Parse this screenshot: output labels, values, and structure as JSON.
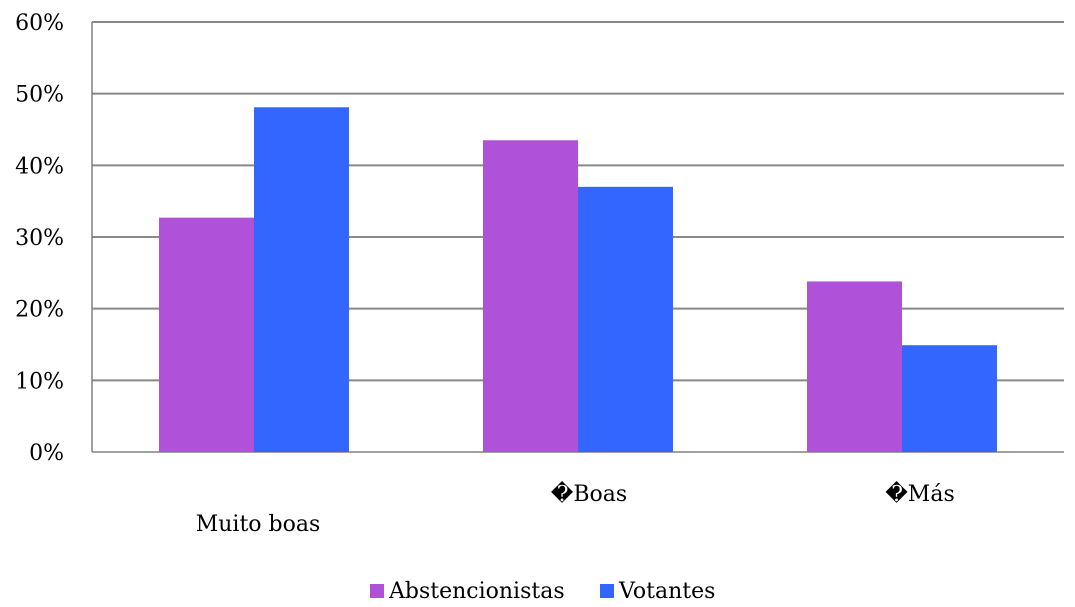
{
  "chart_data": {
    "type": "bar",
    "categories": [
      "Muito boas",
      "�Boas",
      "�Más"
    ],
    "series": [
      {
        "name": "Abstencionistas",
        "color": "#AF52D9",
        "values": [
          32.7,
          43.5,
          23.8
        ]
      },
      {
        "name": "Votantes",
        "color": "#3366FF",
        "values": [
          48.1,
          37.0,
          14.9
        ]
      }
    ],
    "ylim": [
      0,
      60
    ],
    "yticks": [
      {
        "value": 0,
        "label": "0%"
      },
      {
        "value": 10,
        "label": "10%"
      },
      {
        "value": 20,
        "label": "20%"
      },
      {
        "value": 30,
        "label": "30%"
      },
      {
        "value": 40,
        "label": "40%"
      },
      {
        "value": 50,
        "label": "50%"
      },
      {
        "value": 60,
        "label": "60%"
      }
    ],
    "grid": true,
    "legend_position": "bottom",
    "title": "",
    "xlabel": "",
    "ylabel": ""
  }
}
